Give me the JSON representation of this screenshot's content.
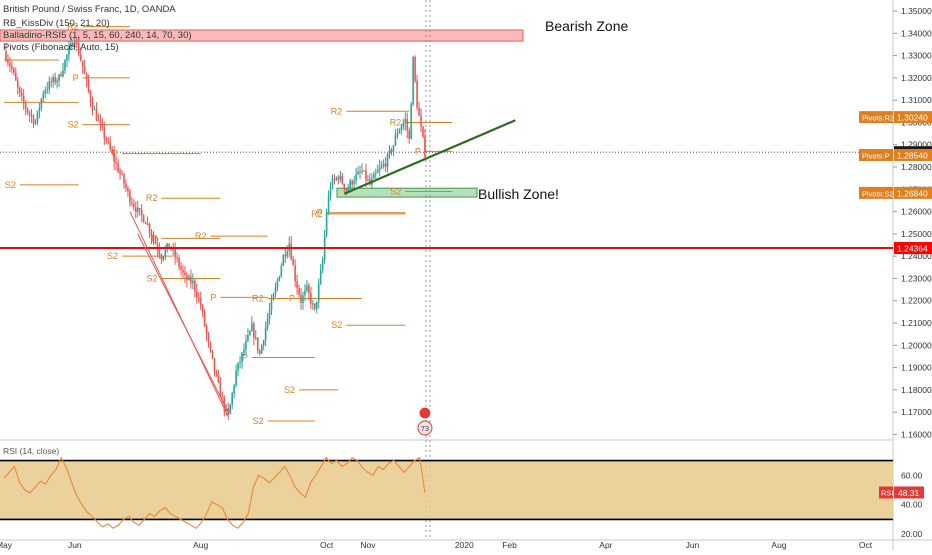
{
  "header": {
    "title": "British Pound / Swiss Franc, 1D, OANDA",
    "ind1": "RB_KissDiv (150, 21, 20)",
    "ind2": "Balladino-RSI5 (1, 5, 15, 60, 240, 14, 70, 30)",
    "ind3": "Pivots (Fibonacci, Auto, 15)"
  },
  "annotations": {
    "bearish": "Bearish Zone",
    "bullish": "Bullish Zone!"
  },
  "rsi_title": "RSI (14, close)",
  "badge_count": "73",
  "colors": {
    "up": "#26a69a",
    "down": "#ef5350",
    "pivot": "#e07f1f",
    "hline": "#ff0000",
    "trend": "#2e6b1f",
    "rsi_band": "#e8c98a",
    "rsi_line": "#e8893a"
  },
  "chart_data": {
    "type": "candlestick",
    "symbol": "GBPCHF",
    "timeframe": "1D",
    "y_ticks": [
      "1.35000",
      "1.34000",
      "1.33000",
      "1.32000",
      "1.31000",
      "1.30000",
      "1.29000",
      "1.28000",
      "1.27000",
      "1.26000",
      "1.25000",
      "1.24000",
      "1.23000",
      "1.22000",
      "1.21000",
      "1.20000",
      "1.19000",
      "1.18000",
      "1.17000",
      "1.16000"
    ],
    "y_range": [
      1.1575,
      1.3545
    ],
    "x_ticks": [
      {
        "label": "May",
        "i": 0
      },
      {
        "label": "Jun",
        "i": 36
      },
      {
        "label": "Aug",
        "i": 100
      },
      {
        "label": "Oct",
        "i": 164
      },
      {
        "label": "Nov",
        "i": 185
      },
      {
        "label": "2020",
        "i": 234
      },
      {
        "label": "Feb",
        "i": 257
      },
      {
        "label": "Apr",
        "i": 306
      },
      {
        "label": "Jun",
        "i": 350
      },
      {
        "label": "Aug",
        "i": 394
      },
      {
        "label": "Oct",
        "i": 438
      }
    ],
    "candle_count": 218,
    "path": [
      {
        "i": 0,
        "v": 1.332
      },
      {
        "i": 4,
        "v": 1.324
      },
      {
        "i": 8,
        "v": 1.312
      },
      {
        "i": 12,
        "v": 1.305
      },
      {
        "i": 16,
        "v": 1.3
      },
      {
        "i": 20,
        "v": 1.314
      },
      {
        "i": 24,
        "v": 1.318
      },
      {
        "i": 28,
        "v": 1.32
      },
      {
        "i": 32,
        "v": 1.33
      },
      {
        "i": 36,
        "v": 1.338
      },
      {
        "i": 40,
        "v": 1.325
      },
      {
        "i": 44,
        "v": 1.31
      },
      {
        "i": 48,
        "v": 1.3
      },
      {
        "i": 52,
        "v": 1.292
      },
      {
        "i": 56,
        "v": 1.283
      },
      {
        "i": 60,
        "v": 1.275
      },
      {
        "i": 64,
        "v": 1.266
      },
      {
        "i": 68,
        "v": 1.26
      },
      {
        "i": 72,
        "v": 1.256
      },
      {
        "i": 76,
        "v": 1.248
      },
      {
        "i": 80,
        "v": 1.24
      },
      {
        "i": 84,
        "v": 1.245
      },
      {
        "i": 88,
        "v": 1.238
      },
      {
        "i": 92,
        "v": 1.23
      },
      {
        "i": 96,
        "v": 1.228
      },
      {
        "i": 100,
        "v": 1.218
      },
      {
        "i": 104,
        "v": 1.2
      },
      {
        "i": 108,
        "v": 1.185
      },
      {
        "i": 112,
        "v": 1.172
      },
      {
        "i": 114,
        "v": 1.168
      },
      {
        "i": 118,
        "v": 1.188
      },
      {
        "i": 122,
        "v": 1.198
      },
      {
        "i": 126,
        "v": 1.208
      },
      {
        "i": 130,
        "v": 1.196
      },
      {
        "i": 134,
        "v": 1.212
      },
      {
        "i": 138,
        "v": 1.225
      },
      {
        "i": 142,
        "v": 1.24
      },
      {
        "i": 145,
        "v": 1.246
      },
      {
        "i": 148,
        "v": 1.23
      },
      {
        "i": 151,
        "v": 1.22
      },
      {
        "i": 154,
        "v": 1.225
      },
      {
        "i": 158,
        "v": 1.215
      },
      {
        "i": 162,
        "v": 1.238
      },
      {
        "i": 164,
        "v": 1.26
      },
      {
        "i": 166,
        "v": 1.272
      },
      {
        "i": 170,
        "v": 1.276
      },
      {
        "i": 174,
        "v": 1.27
      },
      {
        "i": 178,
        "v": 1.275
      },
      {
        "i": 182,
        "v": 1.278
      },
      {
        "i": 186,
        "v": 1.272
      },
      {
        "i": 190,
        "v": 1.278
      },
      {
        "i": 194,
        "v": 1.282
      },
      {
        "i": 198,
        "v": 1.29
      },
      {
        "i": 200,
        "v": 1.296
      },
      {
        "i": 204,
        "v": 1.301
      },
      {
        "i": 206,
        "v": 1.292
      },
      {
        "i": 208,
        "v": 1.328
      },
      {
        "i": 210,
        "v": 1.308
      },
      {
        "i": 212,
        "v": 1.297
      },
      {
        "i": 214,
        "v": 1.2865
      }
    ],
    "horizontal_line": {
      "value": 1.24364,
      "label": "1.24364"
    },
    "price_badges": [
      {
        "value": 1.3024,
        "text": "Pivots:R2",
        "price": "1.30240",
        "kind": "pivot"
      },
      {
        "value": 1.28665,
        "text": "",
        "price": "1.28665",
        "kind": "last"
      },
      {
        "value": 1.2854,
        "text": "Pivots:P",
        "price": "1.28540",
        "kind": "pivot"
      },
      {
        "value": 1.2684,
        "text": "Pivots:S2",
        "price": "1.26840",
        "kind": "pivot"
      },
      {
        "value": 1.24364,
        "text": "",
        "price": "1.24364",
        "kind": "line"
      }
    ],
    "bearish_zone": [
      1.3365,
      1.3415
    ],
    "bullish_zone": [
      1.2665,
      1.2705
    ],
    "trend_lines": [
      {
        "from": {
          "i": 173,
          "v": 1.268
        },
        "to": {
          "i": 260,
          "v": 1.301
        },
        "color": "trend"
      },
      {
        "from": {
          "i": 64,
          "v": 1.26
        },
        "to": {
          "i": 114,
          "v": 1.168
        },
        "color": "down"
      },
      {
        "from": {
          "i": 68,
          "v": 1.25
        },
        "to": {
          "i": 114,
          "v": 1.17
        },
        "color": "down"
      }
    ],
    "pivot_levels": [
      {
        "label": "R2",
        "i0": 0,
        "i1": 28,
        "v": 1.328
      },
      {
        "label": "S2",
        "i0": 0,
        "i1": 38,
        "v": 1.309
      },
      {
        "label": "R2",
        "i0": 40,
        "i1": 64,
        "v": 1.343
      },
      {
        "label": "P",
        "i0": 40,
        "i1": 64,
        "v": 1.32
      },
      {
        "label": "S2",
        "i0": 40,
        "i1": 64,
        "v": 1.299
      },
      {
        "label": "P",
        "i0": 60,
        "i1": 100,
        "v": 1.286
      },
      {
        "label": "S2",
        "i0": 8,
        "i1": 38,
        "v": 1.272
      },
      {
        "label": "R2",
        "i0": 80,
        "i1": 110,
        "v": 1.266
      },
      {
        "label": "R2",
        "i0": 105,
        "i1": 134,
        "v": 1.249
      },
      {
        "label": "P",
        "i0": 80,
        "i1": 110,
        "v": 1.248
      },
      {
        "label": "S2",
        "i0": 60,
        "i1": 86,
        "v": 1.24
      },
      {
        "label": "S2",
        "i0": 80,
        "i1": 110,
        "v": 1.23
      },
      {
        "label": "P",
        "i0": 110,
        "i1": 134,
        "v": 1.2215
      },
      {
        "label": "R2",
        "i0": 134,
        "i1": 150,
        "v": 1.221
      },
      {
        "label": "P",
        "i0": 150,
        "i1": 182,
        "v": 1.221
      },
      {
        "label": "P",
        "i0": 126,
        "i1": 158,
        "v": 1.1945
      },
      {
        "label": "S2",
        "i0": 150,
        "i1": 170,
        "v": 1.18
      },
      {
        "label": "S2",
        "i0": 134,
        "i1": 158,
        "v": 1.166
      },
      {
        "label": "R2",
        "i0": 174,
        "i1": 206,
        "v": 1.305
      },
      {
        "label": "R2",
        "i0": 204,
        "i1": 228,
        "v": 1.3
      },
      {
        "label": "P",
        "i0": 214,
        "i1": 228,
        "v": 1.287
      },
      {
        "label": "R2",
        "i0": 164,
        "i1": 204,
        "v": 1.259
      },
      {
        "label": "P",
        "i0": 164,
        "i1": 204,
        "v": 1.2595
      },
      {
        "label": "S2",
        "i0": 174,
        "i1": 204,
        "v": 1.209
      },
      {
        "label": "S2",
        "i0": 204,
        "i1": 228,
        "v": 1.269
      }
    ],
    "rsi": {
      "title": "RSI (14, close)",
      "y_ticks": [
        "60.00",
        "40.00",
        "20.00"
      ],
      "y_range": [
        16,
        84
      ],
      "upper": 70,
      "lower": 30,
      "last": "48.31",
      "values": [
        58,
        62,
        66,
        55,
        50,
        48,
        52,
        56,
        54,
        60,
        64,
        72,
        65,
        55,
        46,
        40,
        35,
        32,
        28,
        25,
        27,
        24,
        26,
        30,
        32,
        28,
        26,
        30,
        34,
        32,
        36,
        38,
        34,
        32,
        30,
        28,
        26,
        24,
        28,
        34,
        42,
        40,
        38,
        30,
        26,
        24,
        28,
        34,
        52,
        60,
        58,
        55,
        58,
        62,
        66,
        60,
        52,
        48,
        45,
        55,
        60,
        66,
        72,
        68,
        70,
        66,
        68,
        72,
        70,
        65,
        62,
        60,
        66,
        64,
        68,
        70,
        66,
        62,
        66,
        70,
        72,
        48
      ]
    }
  }
}
